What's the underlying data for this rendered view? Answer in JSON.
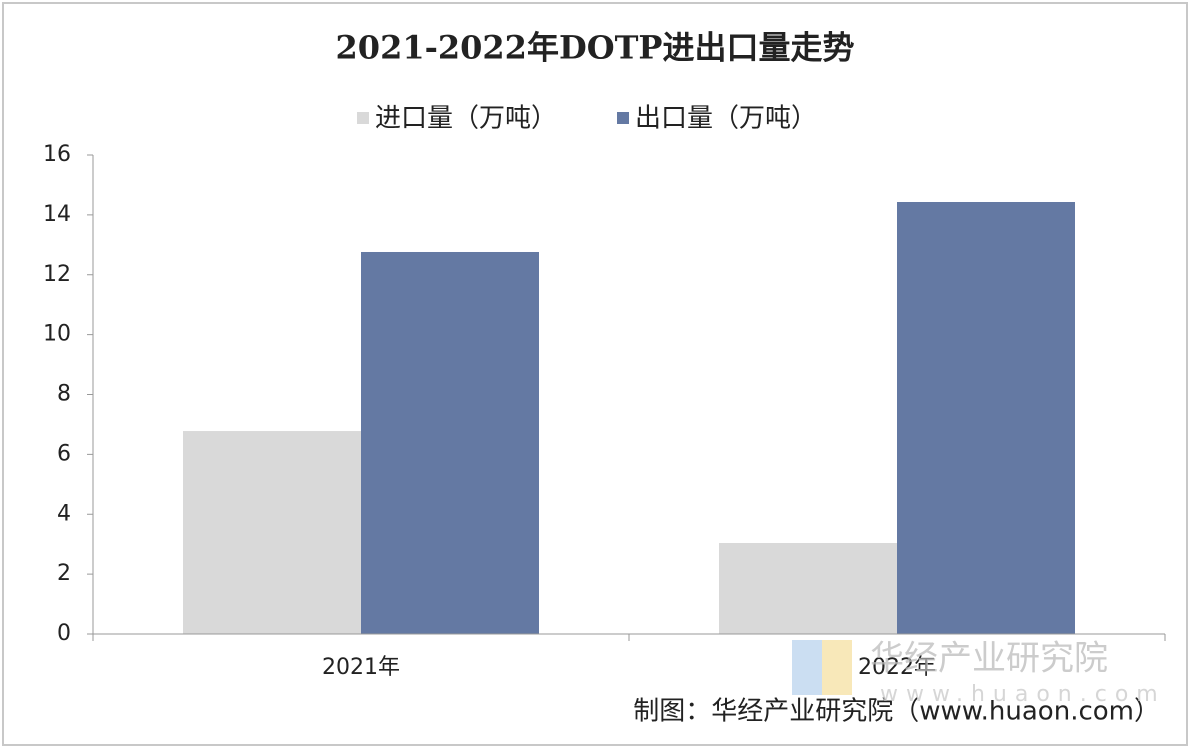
{
  "chart_data": {
    "type": "bar",
    "title": "2021-2022年DOTP进出口量走势",
    "categories": [
      "2021年",
      "2022年"
    ],
    "series": [
      {
        "name": "进口量（万吨）",
        "color": "#d9d9d9",
        "values": [
          6.78,
          3.04
        ]
      },
      {
        "name": "出口量（万吨）",
        "color": "#6479a3",
        "values": [
          12.76,
          14.43
        ]
      }
    ],
    "ylim": [
      0,
      16
    ],
    "yticks": [
      0,
      2,
      4,
      6,
      8,
      10,
      12,
      14,
      16
    ],
    "grid": false,
    "legend": "top",
    "source": "制图：华经产业研究院（www.huaon.com）",
    "watermark": "华经产业研究院",
    "watermark_url": "www.huaon.com"
  }
}
